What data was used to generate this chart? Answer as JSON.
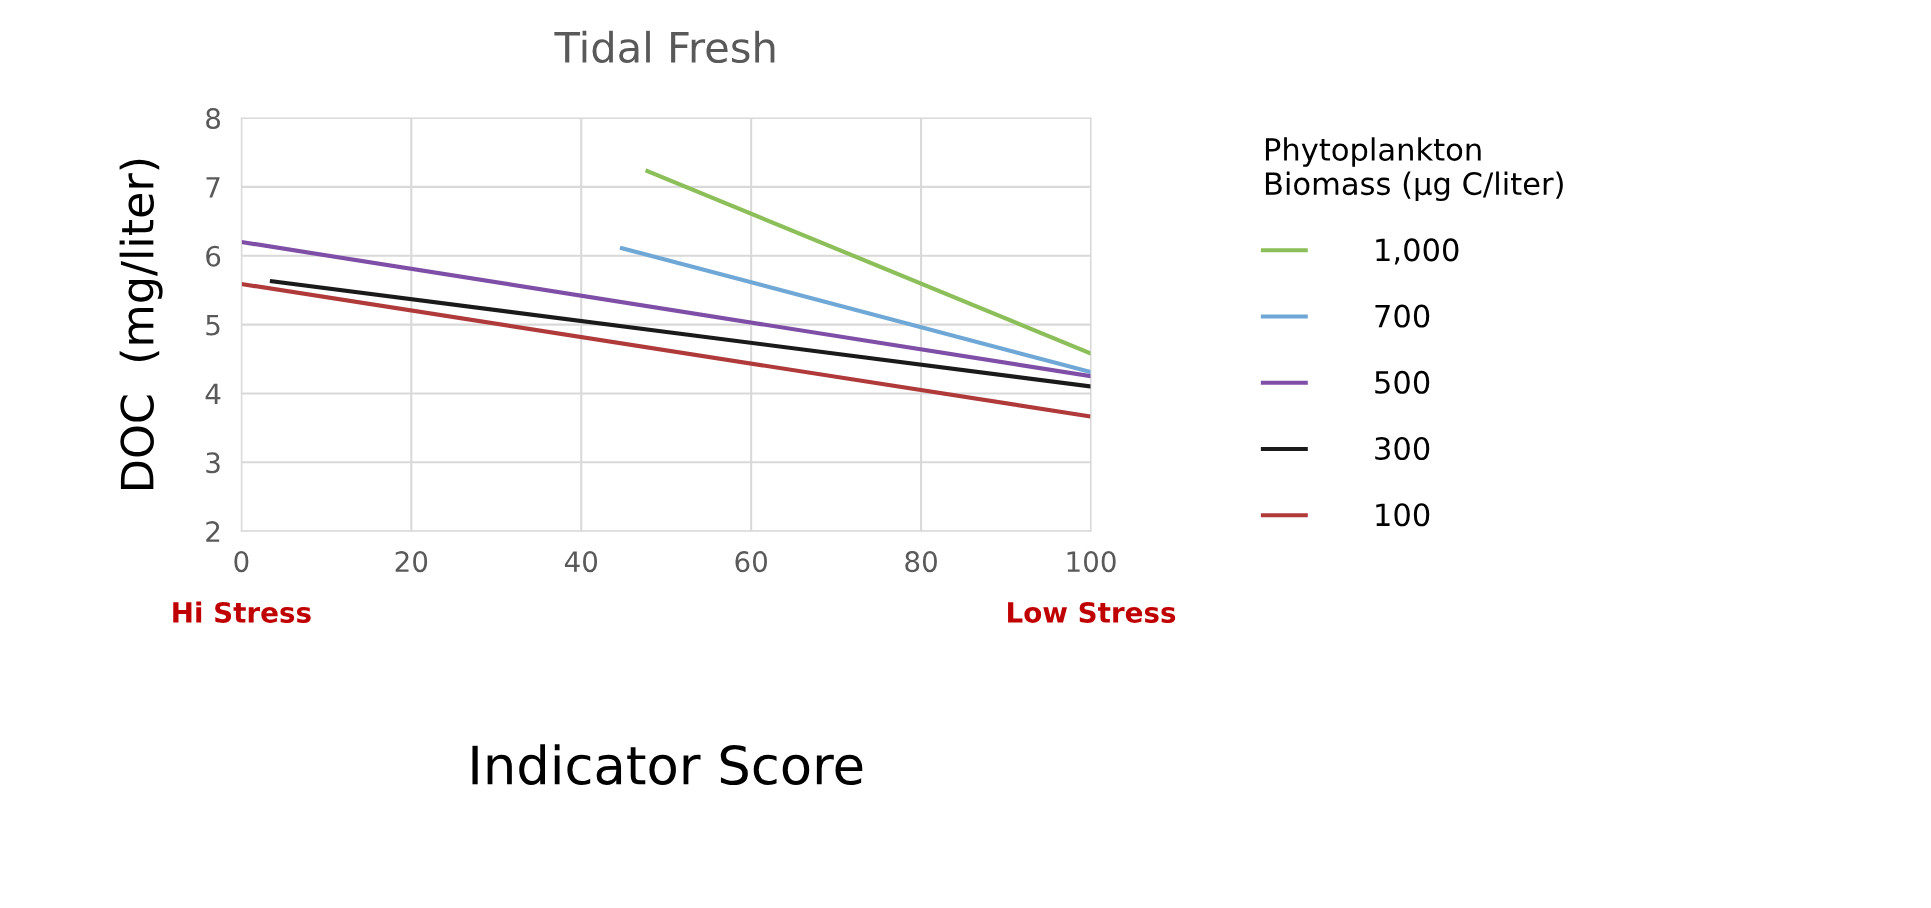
{
  "chart_data": {
    "type": "line",
    "title": "Tidal Fresh",
    "xlabel": "Indicator Score",
    "ylabel": "DOC  (mg/liter)",
    "legend_title": "Phytoplankton\nBiomass (µg C/liter)",
    "series": [
      {
        "name": "1,000",
        "color": "#8cbf5a",
        "x": [
          47.8,
          100
        ],
        "values": [
          7.23,
          4.58
        ]
      },
      {
        "name": "700",
        "color": "#6fa8d6",
        "x": [
          44.8,
          100
        ],
        "values": [
          6.11,
          4.31
        ]
      },
      {
        "name": "500",
        "color": "#7f4fa8",
        "x": [
          0,
          100
        ],
        "values": [
          6.2,
          4.25
        ]
      },
      {
        "name": "300",
        "color": "#1a1a1a",
        "x": [
          3.6,
          100
        ],
        "values": [
          5.63,
          4.1
        ]
      },
      {
        "name": "100",
        "color": "#b03a3a",
        "x": [
          0,
          99.7
        ],
        "values": [
          5.59,
          3.67
        ]
      }
    ],
    "xlim": [
      0,
      100
    ],
    "xticks": [
      0,
      20,
      40,
      60,
      80,
      100
    ],
    "ylim": [
      2,
      8
    ],
    "yticks": [
      2,
      3,
      4,
      5,
      6,
      7,
      8
    ],
    "grid": true,
    "legend": "right",
    "marker": "none",
    "line_style": "solid",
    "annotations": [
      "Hi Stress",
      "Low Stress"
    ]
  }
}
